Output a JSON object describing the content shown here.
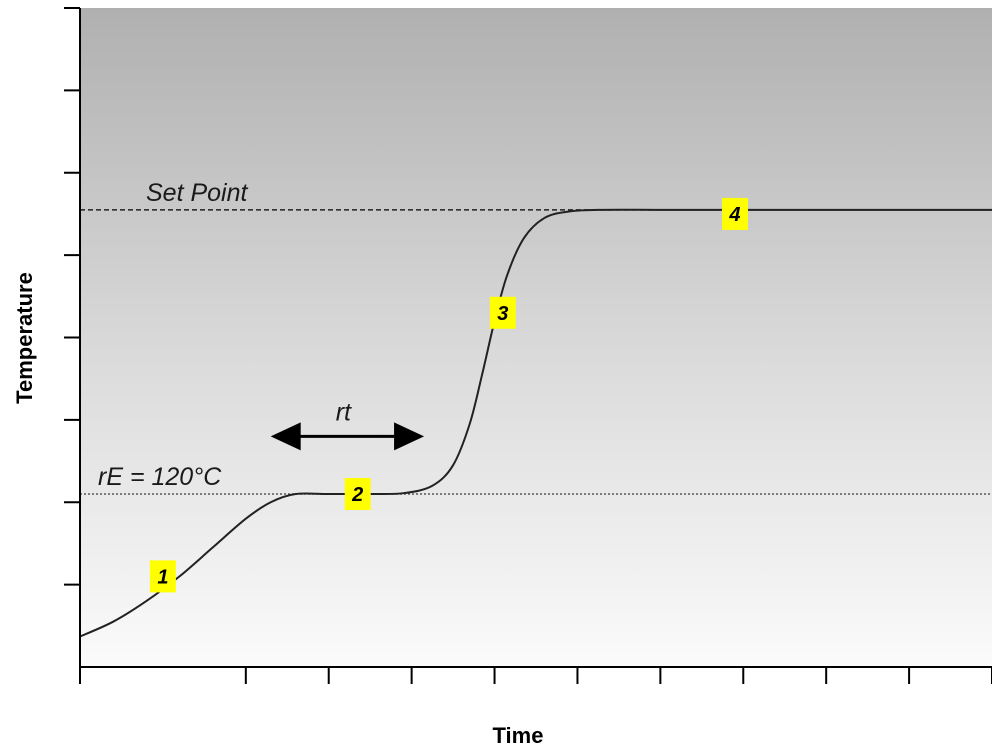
{
  "chart_data": {
    "type": "line",
    "xlabel": "Time",
    "ylabel": "Temperature",
    "xlim": [
      0,
      11
    ],
    "ylim": [
      0,
      8
    ],
    "x_ticks": [
      0,
      2,
      3,
      4,
      5,
      6,
      7,
      8,
      9,
      10,
      11
    ],
    "y_ticks": [
      1,
      2,
      3,
      4,
      5,
      6,
      7,
      8
    ],
    "grid": false,
    "background": "vertical gradient, gray at top to white at bottom",
    "reference_lines": [
      {
        "label": "Set Point",
        "y": 5.55,
        "style": "dashed",
        "color": "#222222"
      },
      {
        "label": "rE = 120°C",
        "y": 2.1,
        "style": "dotted",
        "color": "#555555"
      }
    ],
    "series": [
      {
        "color": "#222222",
        "points": [
          [
            0,
            0.37
          ],
          [
            0.4,
            0.55
          ],
          [
            0.8,
            0.8
          ],
          [
            1.2,
            1.1
          ],
          [
            1.6,
            1.45
          ],
          [
            2.0,
            1.8
          ],
          [
            2.3,
            2.0
          ],
          [
            2.6,
            2.1
          ],
          [
            3.0,
            2.1
          ],
          [
            3.5,
            2.1
          ],
          [
            3.9,
            2.11
          ],
          [
            4.25,
            2.2
          ],
          [
            4.5,
            2.45
          ],
          [
            4.7,
            2.95
          ],
          [
            4.85,
            3.55
          ],
          [
            5.0,
            4.2
          ],
          [
            5.15,
            4.75
          ],
          [
            5.35,
            5.2
          ],
          [
            5.6,
            5.45
          ],
          [
            5.9,
            5.53
          ],
          [
            6.3,
            5.55
          ],
          [
            7.0,
            5.55
          ],
          [
            8.0,
            5.55
          ],
          [
            9.0,
            5.55
          ],
          [
            10.0,
            5.55
          ],
          [
            11.0,
            5.55
          ]
        ]
      }
    ],
    "annotations": [
      {
        "type": "double-arrow",
        "label": "rt",
        "x_start": 2.3,
        "x_end": 4.15,
        "y": 2.8
      }
    ],
    "markers": [
      {
        "label": "1",
        "x": 1.0,
        "y": 1.1,
        "color": "#ffff00"
      },
      {
        "label": "2",
        "x": 3.35,
        "y": 2.1,
        "color": "#ffff00"
      },
      {
        "label": "3",
        "x": 5.1,
        "y": 4.3,
        "color": "#ffff00"
      },
      {
        "label": "4",
        "x": 7.9,
        "y": 5.5,
        "color": "#ffff00"
      }
    ]
  }
}
